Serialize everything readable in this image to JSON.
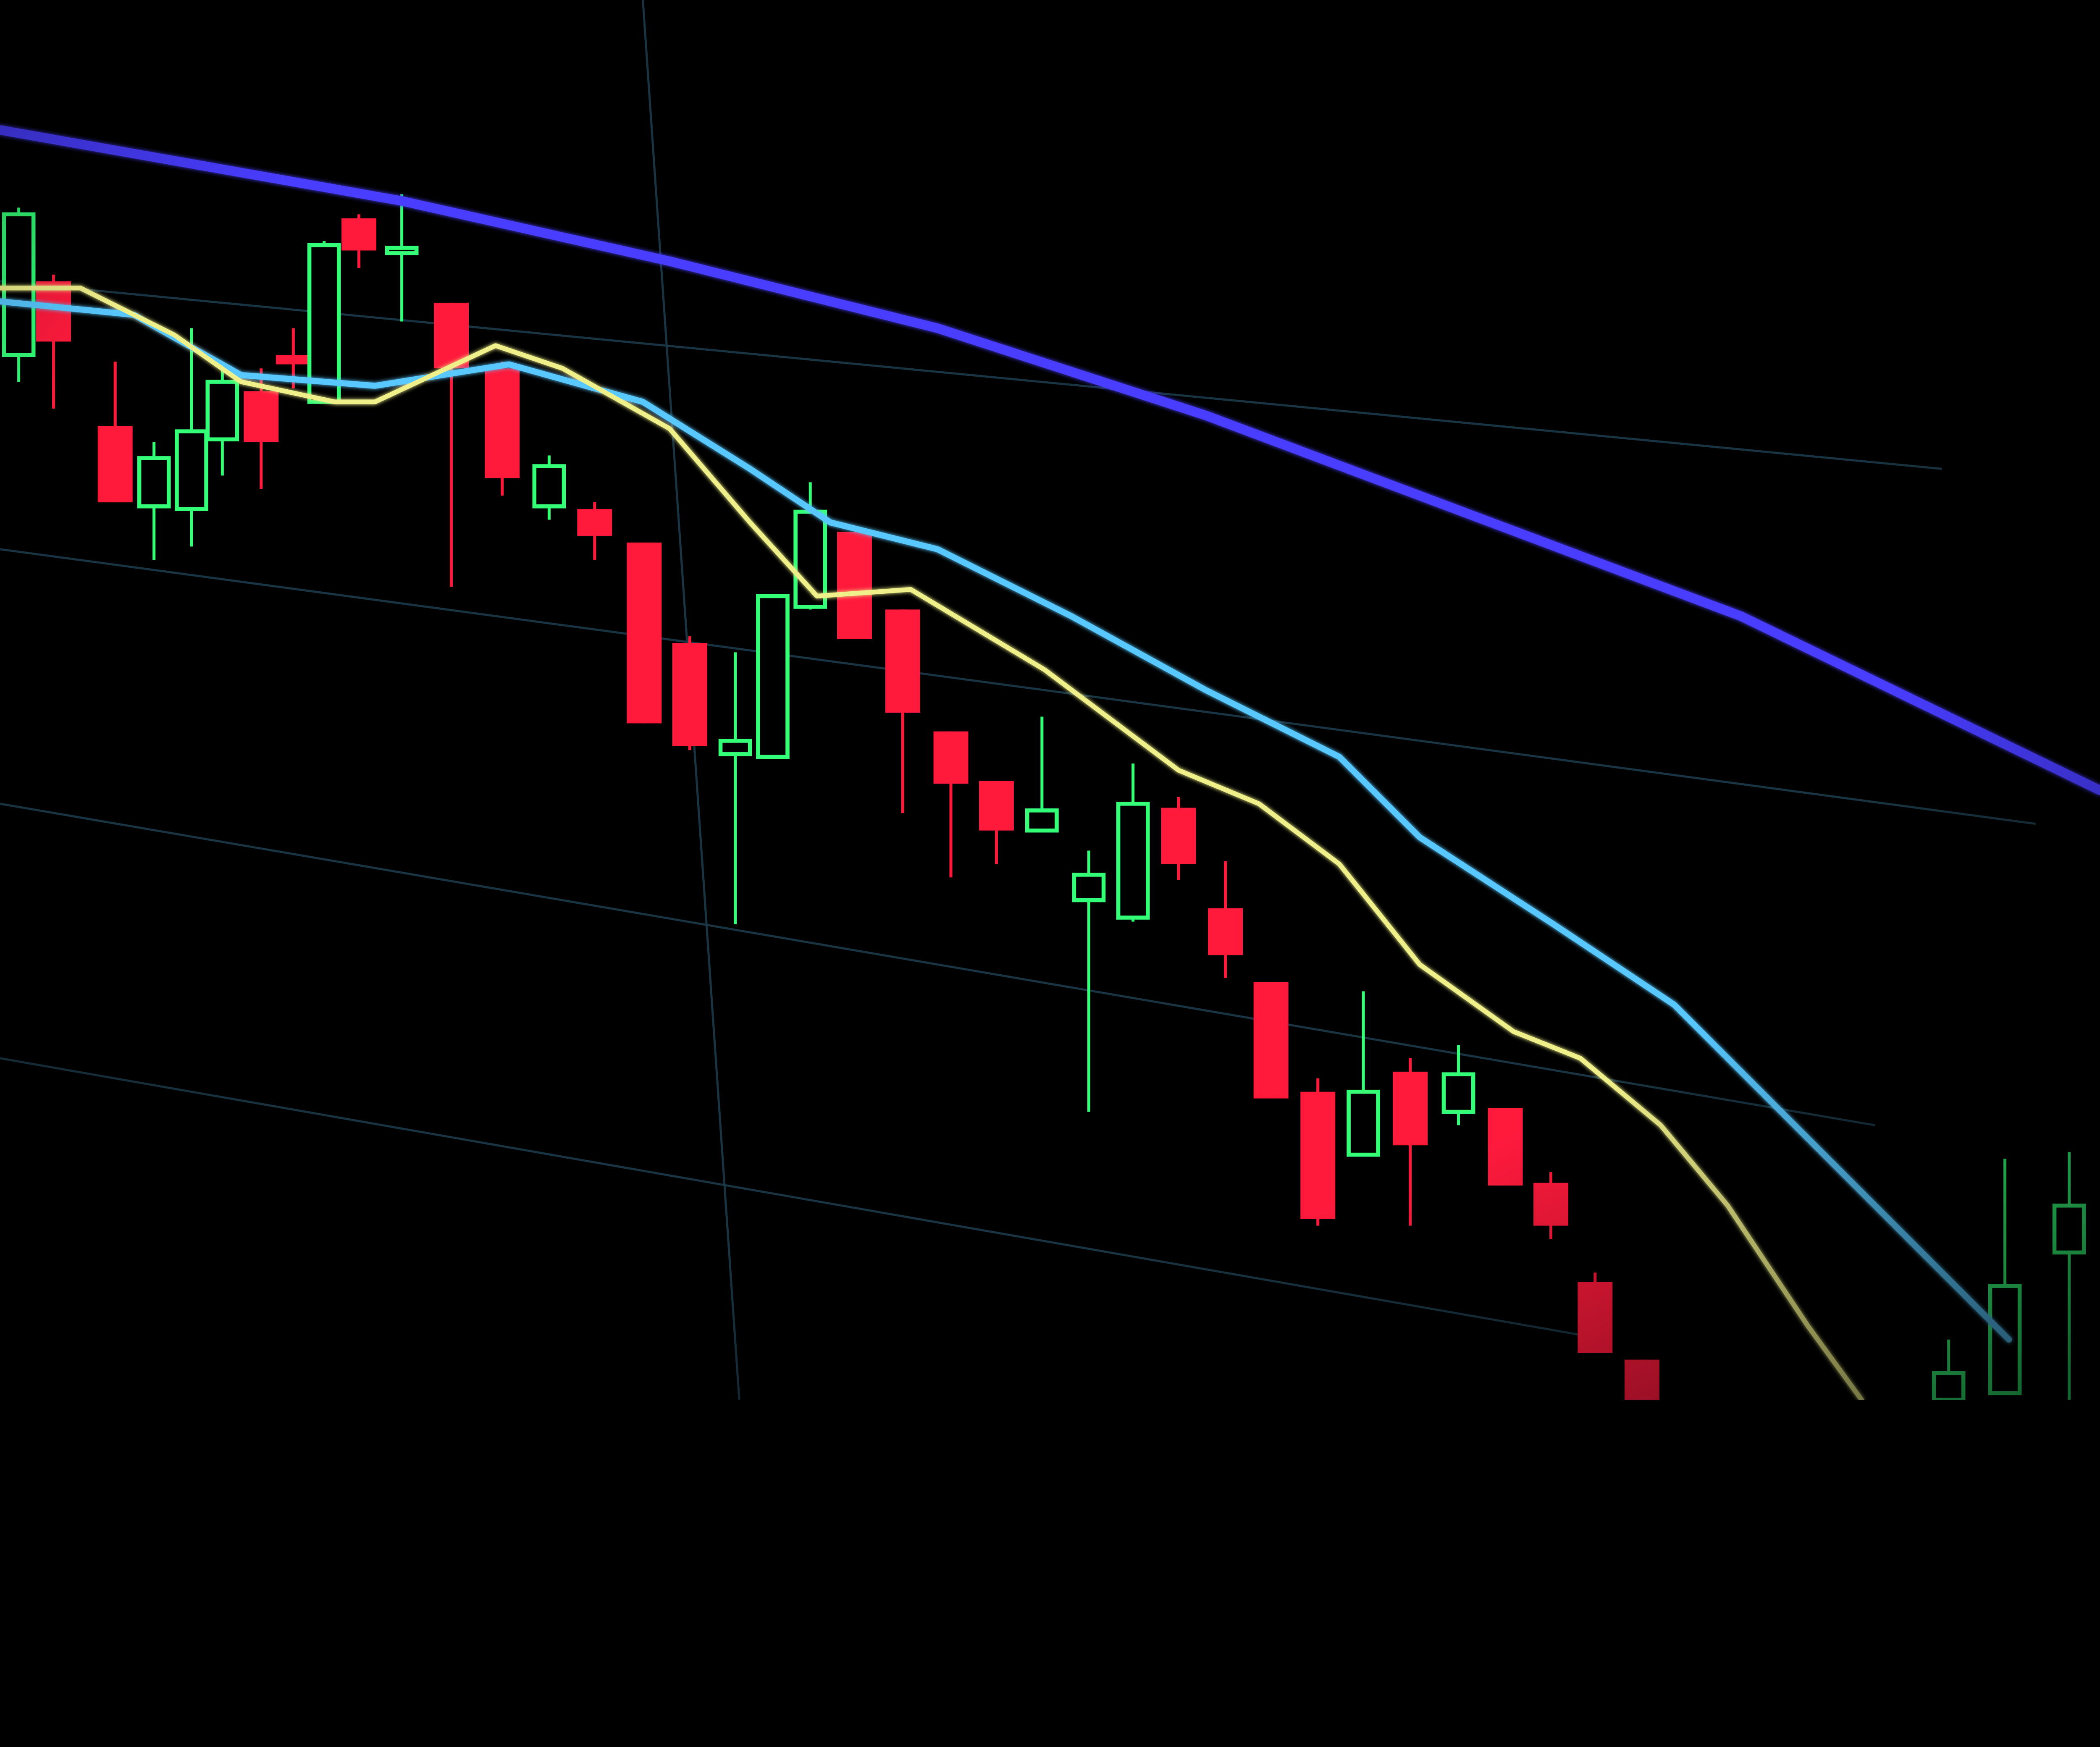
{
  "scene": {
    "background_color": "#000000",
    "colors": {
      "bearish_candle": "#ff1a3c",
      "bullish_candle": "#33ff77",
      "moving_average_slow": "#4a3cff",
      "moving_average_mid": "#59c8ff",
      "moving_average_fast": "#f0f08a",
      "gridline": "#1c3a4a"
    }
  }
}
